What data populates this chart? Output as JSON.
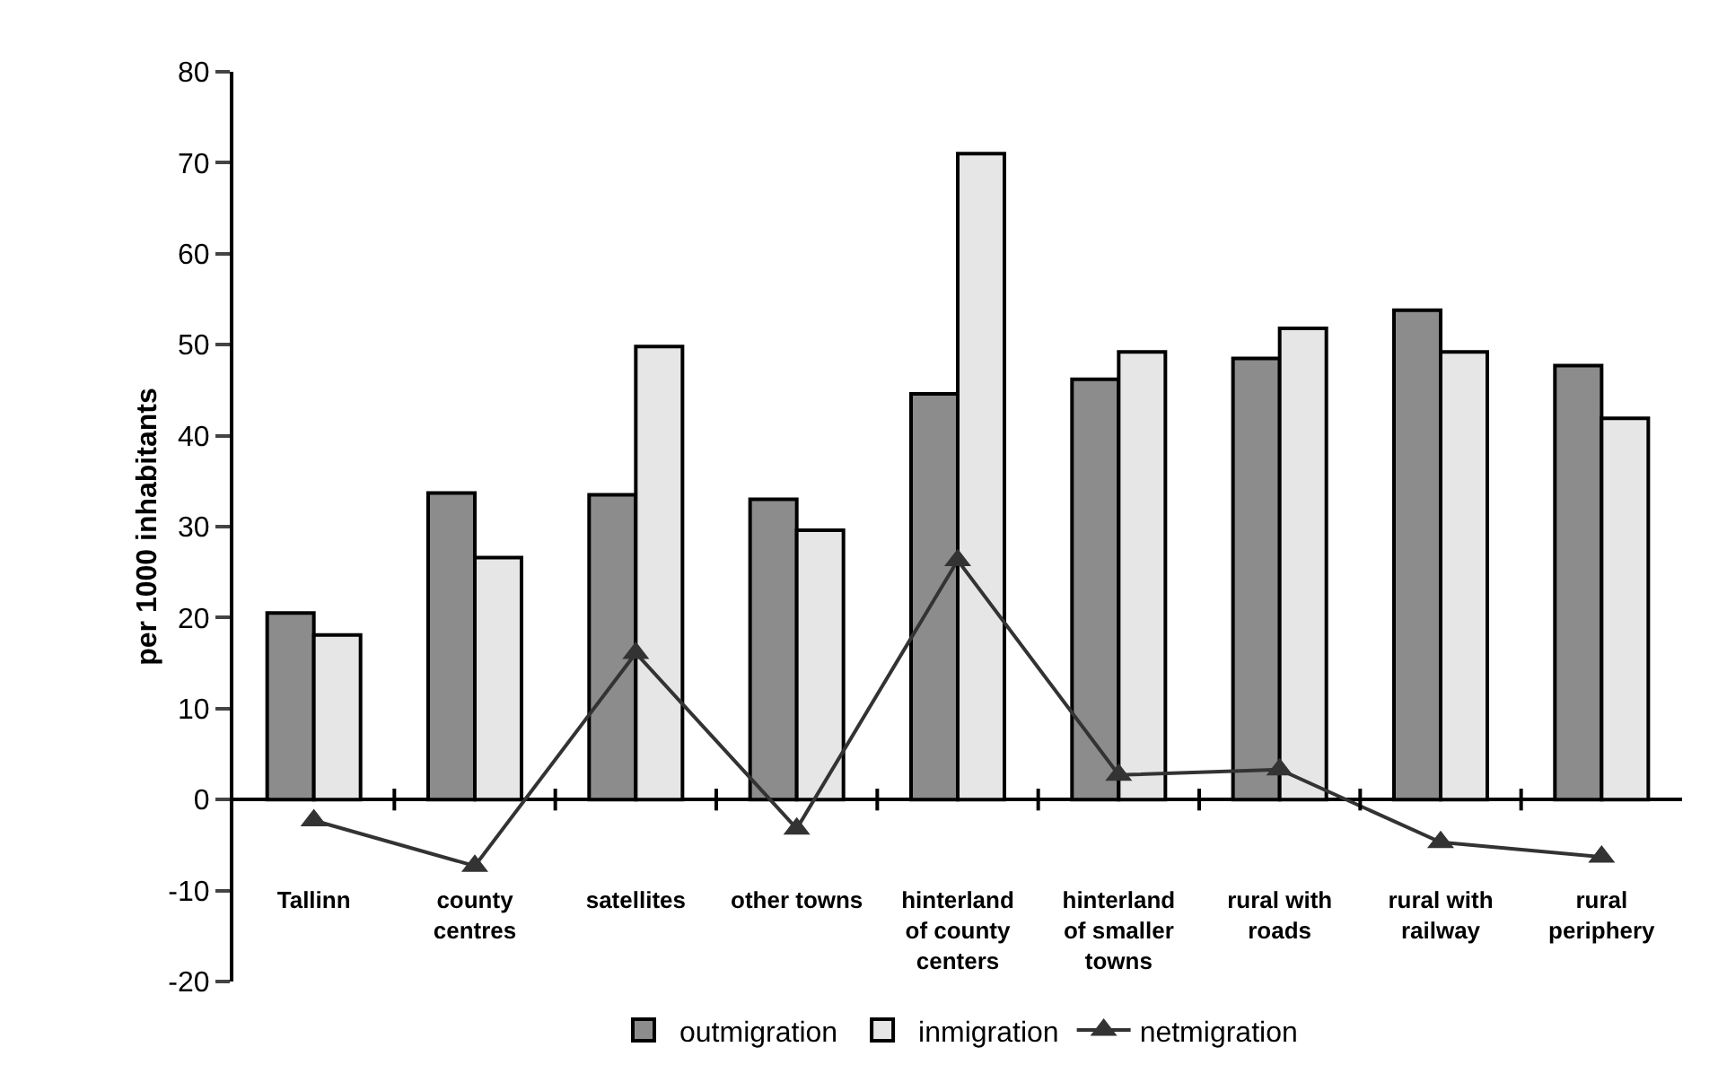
{
  "chart_data": {
    "type": "bar",
    "ylabel": "per 1000 inhabitants",
    "categories": [
      "Tallinn",
      "county centres",
      "satellites",
      "other towns",
      "hinterland of county centers",
      "hinterland of smaller towns",
      "rural with roads",
      "rural with railway",
      "rural periphery"
    ],
    "series": [
      {
        "name": "outmigration",
        "color": "#8c8c8c",
        "values": [
          20.5,
          33.7,
          33.5,
          33.0,
          44.6,
          46.2,
          48.5,
          53.8,
          47.7
        ]
      },
      {
        "name": "inmigration",
        "color": "#e6e6e6",
        "values": [
          18.1,
          26.6,
          49.8,
          29.6,
          71.0,
          49.2,
          51.8,
          49.2,
          41.9
        ]
      },
      {
        "name": "netmigration",
        "type": "line",
        "color": "#333333",
        "marker": "triangle",
        "values": [
          -2.3,
          -7.3,
          16.1,
          -3.2,
          26.3,
          2.7,
          3.3,
          -4.7,
          -6.3
        ]
      }
    ],
    "ylim": [
      -20,
      80
    ],
    "yticks": [
      -20,
      -10,
      0,
      10,
      20,
      30,
      40,
      50,
      60,
      70,
      80
    ],
    "legend": "bottom"
  }
}
